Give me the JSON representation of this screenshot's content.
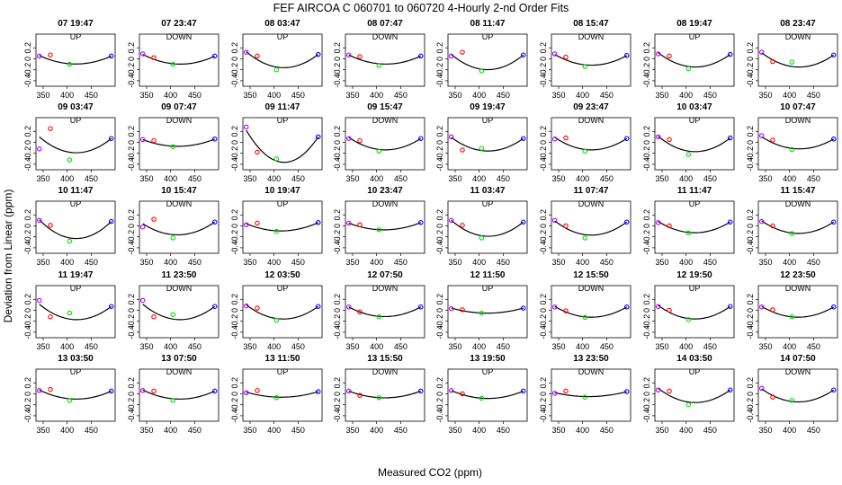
{
  "title": "FEF   AIRCOA C   060701 to 060720   4-Hourly 2-nd Order Fits",
  "chart_data": {
    "type": "scatter",
    "layout": "5 rows x 8 small-multiple panels",
    "xlabel": "Measured CO2 (ppm)",
    "ylabel": "Deviation from Linear (ppm)",
    "xlim": [
      335,
      500
    ],
    "ylim": [
      -0.5,
      0.45
    ],
    "xticks": [
      350,
      400,
      450
    ],
    "yticks": [
      -0.4,
      -0.2,
      0.0,
      0.2
    ],
    "ytick_labels": [
      "-0.4",
      "-0.2",
      "0",
      "0.2"
    ],
    "xtick_labels": [
      "350",
      "400",
      "450"
    ],
    "standard_x": [
      342,
      365,
      405,
      492
    ],
    "standard_colors": [
      "#b000ff",
      "#ff0000",
      "#00dd00",
      "#0000ff"
    ],
    "fit_line_color": "#000000",
    "panels": [
      {
        "label": "07 19:47",
        "dir": "UP",
        "y": [
          0.05,
          0.07,
          -0.1,
          0.05
        ],
        "fit": [
          0.06,
          0.0,
          -0.09,
          0.05
        ]
      },
      {
        "label": "07 23:47",
        "dir": "DOWN",
        "y": [
          0.09,
          0.02,
          -0.1,
          0.05
        ],
        "fit": [
          0.08,
          0.01,
          -0.09,
          0.05
        ]
      },
      {
        "label": "08 03:47",
        "dir": "UP",
        "y": [
          0.12,
          0.05,
          -0.2,
          0.08
        ],
        "fit": [
          0.13,
          -0.03,
          -0.15,
          0.08
        ]
      },
      {
        "label": "08 07:47",
        "dir": "DOWN",
        "y": [
          0.07,
          0.04,
          -0.12,
          0.05
        ],
        "fit": [
          0.07,
          -0.01,
          -0.09,
          0.05
        ]
      },
      {
        "label": "08 11:47",
        "dir": "UP",
        "y": [
          0.05,
          0.12,
          -0.22,
          0.07
        ],
        "fit": [
          0.08,
          -0.07,
          -0.19,
          0.07
        ]
      },
      {
        "label": "08 15:47",
        "dir": "DOWN",
        "y": [
          0.09,
          0.03,
          -0.14,
          0.06
        ],
        "fit": [
          0.08,
          -0.02,
          -0.11,
          0.06
        ]
      },
      {
        "label": "08 19:47",
        "dir": "UP",
        "y": [
          0.09,
          0.05,
          -0.18,
          0.08
        ],
        "fit": [
          0.11,
          -0.03,
          -0.14,
          0.08
        ]
      },
      {
        "label": "08 23:47",
        "dir": "DOWN",
        "y": [
          0.12,
          -0.05,
          -0.06,
          0.07
        ],
        "fit": [
          0.11,
          -0.04,
          -0.14,
          0.07
        ]
      },
      {
        "label": "09 03:47",
        "dir": "UP",
        "y": [
          -0.12,
          0.25,
          -0.32,
          0.07
        ],
        "fit": [
          0.1,
          -0.06,
          -0.18,
          0.07
        ]
      },
      {
        "label": "09 07:47",
        "dir": "DOWN",
        "y": [
          0.05,
          0.03,
          -0.08,
          0.06
        ],
        "fit": [
          0.05,
          -0.01,
          -0.07,
          0.06
        ]
      },
      {
        "label": "09 11:47",
        "dir": "UP",
        "y": [
          0.28,
          -0.18,
          -0.3,
          0.1
        ],
        "fit": [
          0.22,
          -0.15,
          -0.34,
          0.1
        ]
      },
      {
        "label": "09 15:47",
        "dir": "DOWN",
        "y": [
          0.07,
          0.03,
          -0.16,
          0.07
        ],
        "fit": [
          0.09,
          -0.04,
          -0.13,
          0.07
        ]
      },
      {
        "label": "09 19:47",
        "dir": "UP",
        "y": [
          0.1,
          -0.14,
          -0.11,
          0.07
        ],
        "fit": [
          0.09,
          -0.06,
          -0.15,
          0.07
        ]
      },
      {
        "label": "09 23:47",
        "dir": "DOWN",
        "y": [
          0.06,
          0.08,
          -0.16,
          0.07
        ],
        "fit": [
          0.09,
          -0.04,
          -0.13,
          0.07
        ]
      },
      {
        "label": "10 03:47",
        "dir": "UP",
        "y": [
          0.1,
          0.05,
          -0.22,
          0.08
        ],
        "fit": [
          0.11,
          -0.05,
          -0.16,
          0.08
        ]
      },
      {
        "label": "10 07:47",
        "dir": "DOWN",
        "y": [
          0.12,
          0.04,
          -0.13,
          0.06
        ],
        "fit": [
          0.1,
          -0.02,
          -0.11,
          0.06
        ]
      },
      {
        "label": "10 11:47",
        "dir": "UP",
        "y": [
          0.1,
          0.01,
          -0.28,
          0.08
        ],
        "fit": [
          0.11,
          -0.09,
          -0.22,
          0.08
        ]
      },
      {
        "label": "10 15:47",
        "dir": "DOWN",
        "y": [
          -0.02,
          0.12,
          -0.22,
          0.07
        ],
        "fit": [
          0.04,
          -0.05,
          -0.16,
          0.07
        ]
      },
      {
        "label": "10 19:47",
        "dir": "UP",
        "y": [
          0.02,
          0.05,
          -0.1,
          0.06
        ],
        "fit": [
          0.04,
          -0.03,
          -0.09,
          0.06
        ]
      },
      {
        "label": "10 23:47",
        "dir": "DOWN",
        "y": [
          0.05,
          0.02,
          -0.07,
          0.06
        ],
        "fit": [
          0.05,
          -0.01,
          -0.07,
          0.06
        ]
      },
      {
        "label": "11 03:47",
        "dir": "UP",
        "y": [
          0.1,
          0.01,
          -0.22,
          0.07
        ],
        "fit": [
          0.1,
          -0.07,
          -0.18,
          0.07
        ]
      },
      {
        "label": "11 07:47",
        "dir": "DOWN",
        "y": [
          0.1,
          0.0,
          -0.22,
          0.07
        ],
        "fit": [
          0.09,
          -0.06,
          -0.16,
          0.07
        ]
      },
      {
        "label": "11 11:47",
        "dir": "UP",
        "y": [
          0.06,
          0.0,
          -0.13,
          0.07
        ],
        "fit": [
          0.08,
          -0.03,
          -0.12,
          0.07
        ]
      },
      {
        "label": "11 15:47",
        "dir": "DOWN",
        "y": [
          0.08,
          0.0,
          -0.14,
          0.07
        ],
        "fit": [
          0.09,
          -0.04,
          -0.13,
          0.07
        ]
      },
      {
        "label": "11 19:47",
        "dir": "UP",
        "y": [
          0.18,
          -0.12,
          -0.05,
          0.07
        ],
        "fit": [
          0.11,
          -0.06,
          -0.16,
          0.07
        ]
      },
      {
        "label": "11 23:50",
        "dir": "DOWN",
        "y": [
          0.18,
          -0.12,
          -0.08,
          0.07
        ],
        "fit": [
          0.11,
          -0.06,
          -0.16,
          0.07
        ]
      },
      {
        "label": "12 03:50",
        "dir": "UP",
        "y": [
          0.08,
          0.04,
          -0.18,
          0.07
        ],
        "fit": [
          0.1,
          -0.05,
          -0.15,
          0.07
        ]
      },
      {
        "label": "12 07:50",
        "dir": "DOWN",
        "y": [
          0.06,
          -0.03,
          -0.12,
          0.06
        ],
        "fit": [
          0.06,
          -0.04,
          -0.11,
          0.06
        ]
      },
      {
        "label": "12 11:50",
        "dir": "UP",
        "y": [
          0.03,
          0.01,
          -0.05,
          0.04
        ],
        "fit": [
          0.04,
          -0.01,
          -0.05,
          0.04
        ]
      },
      {
        "label": "12 15:50",
        "dir": "DOWN",
        "y": [
          0.06,
          -0.01,
          -0.13,
          0.06
        ],
        "fit": [
          0.07,
          -0.04,
          -0.12,
          0.06
        ]
      },
      {
        "label": "12 19:50",
        "dir": "UP",
        "y": [
          0.07,
          0.0,
          -0.17,
          0.07
        ],
        "fit": [
          0.09,
          -0.05,
          -0.15,
          0.07
        ]
      },
      {
        "label": "12 23:50",
        "dir": "DOWN",
        "y": [
          0.06,
          0.01,
          -0.12,
          0.06
        ],
        "fit": [
          0.07,
          -0.04,
          -0.12,
          0.06
        ]
      },
      {
        "label": "13 03:50",
        "dir": "UP",
        "y": [
          0.06,
          0.08,
          -0.12,
          0.05
        ],
        "fit": [
          0.07,
          0.0,
          -0.09,
          0.05
        ]
      },
      {
        "label": "13 07:50",
        "dir": "DOWN",
        "y": [
          0.06,
          0.05,
          -0.12,
          0.05
        ],
        "fit": [
          0.07,
          -0.01,
          -0.09,
          0.05
        ]
      },
      {
        "label": "13 11:50",
        "dir": "UP",
        "y": [
          0.02,
          0.06,
          -0.07,
          0.04
        ],
        "fit": [
          0.03,
          -0.01,
          -0.06,
          0.04
        ]
      },
      {
        "label": "13 15:50",
        "dir": "DOWN",
        "y": [
          0.05,
          -0.03,
          -0.07,
          0.05
        ],
        "fit": [
          0.05,
          -0.03,
          -0.07,
          0.05
        ]
      },
      {
        "label": "13 19:50",
        "dir": "UP",
        "y": [
          0.06,
          0.0,
          -0.08,
          0.05
        ],
        "fit": [
          0.06,
          -0.02,
          -0.08,
          0.05
        ]
      },
      {
        "label": "13 23:50",
        "dir": "DOWN",
        "y": [
          0.01,
          0.05,
          -0.06,
          0.04
        ],
        "fit": [
          0.02,
          -0.01,
          -0.05,
          0.04
        ]
      },
      {
        "label": "14 03:50",
        "dir": "UP",
        "y": [
          0.07,
          0.05,
          -0.2,
          0.07
        ],
        "fit": [
          0.1,
          -0.05,
          -0.15,
          0.07
        ]
      },
      {
        "label": "14 07:50",
        "dir": "DOWN",
        "y": [
          0.1,
          -0.06,
          -0.12,
          0.07
        ],
        "fit": [
          0.09,
          -0.05,
          -0.14,
          0.07
        ]
      }
    ]
  }
}
